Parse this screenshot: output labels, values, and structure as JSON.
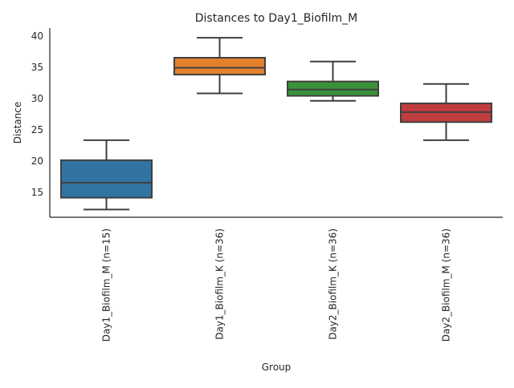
{
  "chart_data": {
    "type": "box",
    "title": "Distances to Day1_Biofilm_M",
    "xlabel": "Group",
    "ylabel": "Distance",
    "ylim": [
      10.97,
      41.25
    ],
    "yticks": [
      15,
      20,
      25,
      30,
      35,
      40
    ],
    "grid": false,
    "categories": [
      "Day1_Biofilm_M (n=15)",
      "Day1_Biofilm_K (n=36)",
      "Day2_Biofilm_K (n=36)",
      "Day2_Biofilm_M (n=36)"
    ],
    "series": [
      {
        "name": "Day1_Biofilm_M (n=15)",
        "whisker_low": 12.2,
        "q1": 14.1,
        "median": 16.5,
        "q3": 20.1,
        "whisker_high": 23.3,
        "color": "#3274a1"
      },
      {
        "name": "Day1_Biofilm_K (n=36)",
        "whisker_low": 30.8,
        "q1": 33.8,
        "median": 34.9,
        "q3": 36.5,
        "whisker_high": 39.7,
        "color": "#e1812c"
      },
      {
        "name": "Day2_Biofilm_K (n=36)",
        "whisker_low": 29.6,
        "q1": 30.4,
        "median": 31.4,
        "q3": 32.7,
        "whisker_high": 35.9,
        "color": "#3a923a"
      },
      {
        "name": "Day2_Biofilm_M (n=36)",
        "whisker_low": 23.3,
        "q1": 26.2,
        "median": 27.8,
        "q3": 29.2,
        "whisker_high": 32.3,
        "color": "#c03d3e"
      }
    ]
  }
}
